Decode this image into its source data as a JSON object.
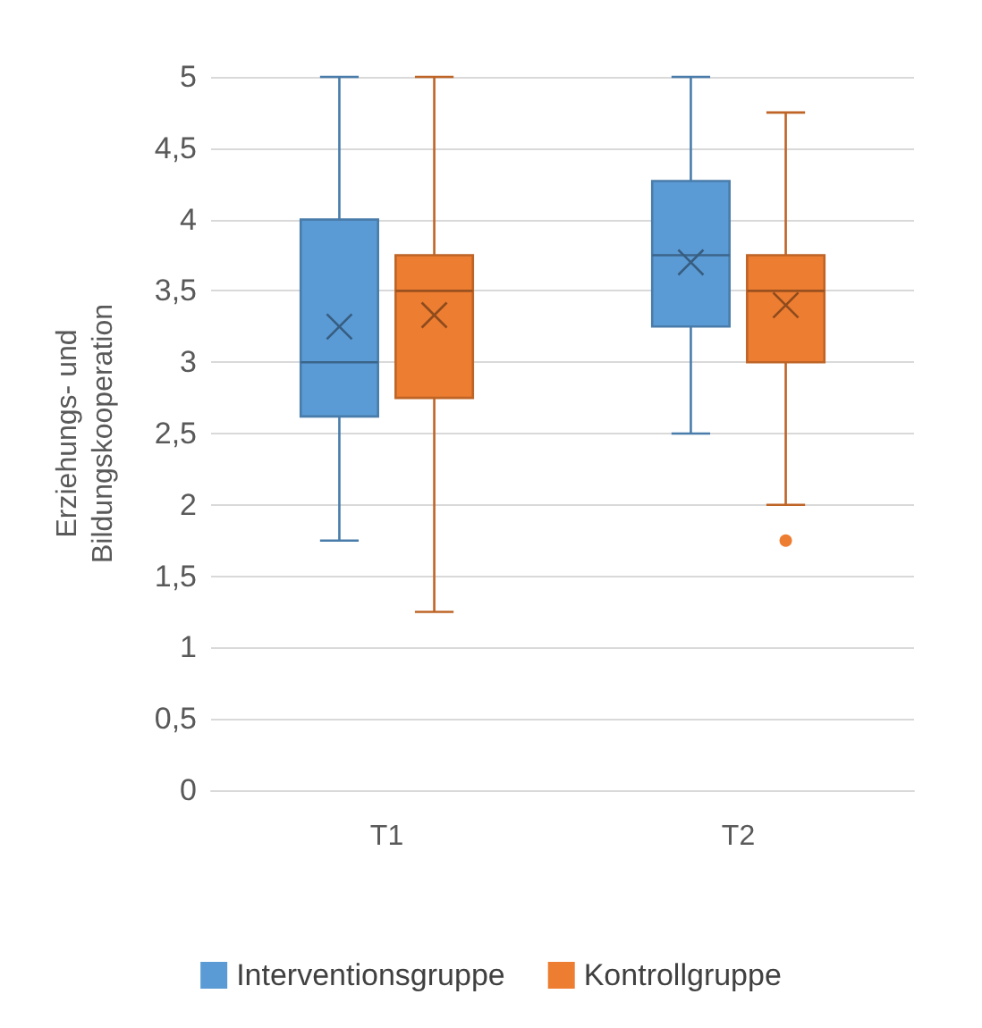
{
  "chart_data": {
    "type": "box",
    "ylabel": "Erziehungs- und Bildungskooperation",
    "categories": [
      "T1",
      "T2"
    ],
    "ylim": [
      0,
      5
    ],
    "yticks": [
      0,
      {
        "value": 0.5,
        "label": "0,5"
      },
      1,
      {
        "value": 1.5,
        "label": "1,5"
      },
      2,
      {
        "value": 2.5,
        "label": "2,5"
      },
      3,
      {
        "value": 3.5,
        "label": "3,5"
      },
      4,
      {
        "value": 4.5,
        "label": "4,5"
      },
      5
    ],
    "grid": "y",
    "legend": "bottom",
    "series": [
      {
        "name": "Interventionsgruppe",
        "color": "#5b9bd5",
        "boxes": [
          {
            "low": 1.75,
            "q1": 2.62,
            "median": 3,
            "q3": 4,
            "high": 5,
            "mean": 3.25
          },
          {
            "low": 2.5,
            "q1": 3.25,
            "median": 3.75,
            "q3": 4.27,
            "high": 5,
            "mean": 3.7
          }
        ]
      },
      {
        "name": "Kontrollgruppe",
        "color": "#ed7d31",
        "boxes": [
          {
            "low": 1.25,
            "q1": 2.75,
            "median": 3.5,
            "q3": 3.75,
            "high": 5,
            "mean": 3.33
          },
          {
            "low": 2,
            "q1": 3,
            "median": 3.5,
            "q3": 3.75,
            "high": 4.75,
            "mean": 3.4,
            "outliers": [
              1.75
            ]
          }
        ]
      }
    ]
  }
}
